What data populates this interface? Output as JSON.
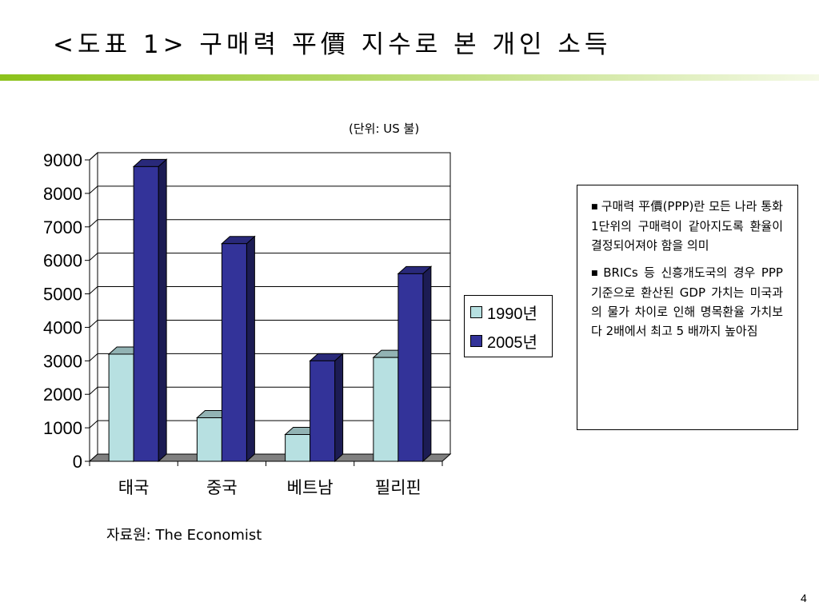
{
  "slide": {
    "title": "<도표 1> 구매력 平價 지수로 본 개인 소득",
    "unit_label": "(단위: US 불)",
    "source_label": "자료원: The Economist",
    "page_number": "4"
  },
  "notes": [
    "구매력 平價(PPP)란 모든 나라 통화 1단위의 구매력이 같아지도록 환율이 결정되어져야 함을 의미",
    "BRICs 등 신흥개도국의 경우 PPP 기준으로 환산된 GDP 가치는 미국과의 물가 차이로 인해 명목환율 가치보다 2배에서 최고 5 배까지 높아짐"
  ],
  "chart_data": {
    "type": "bar",
    "categories": [
      "태국",
      "중국",
      "베트남",
      "필리핀"
    ],
    "series": [
      {
        "name": "1990년",
        "values": [
          3200,
          1300,
          800,
          3100
        ],
        "color": "#b7e0e1"
      },
      {
        "name": "2005년",
        "values": [
          8800,
          6500,
          3000,
          5600
        ],
        "color": "#333399"
      }
    ],
    "ylim": [
      0,
      9000
    ],
    "y_ticks": [
      "0",
      "1000",
      "2000",
      "3000",
      "4000",
      "5000",
      "6000",
      "7000",
      "8000",
      "9000"
    ],
    "grid": true,
    "legend_position": "right",
    "three_d": true
  }
}
